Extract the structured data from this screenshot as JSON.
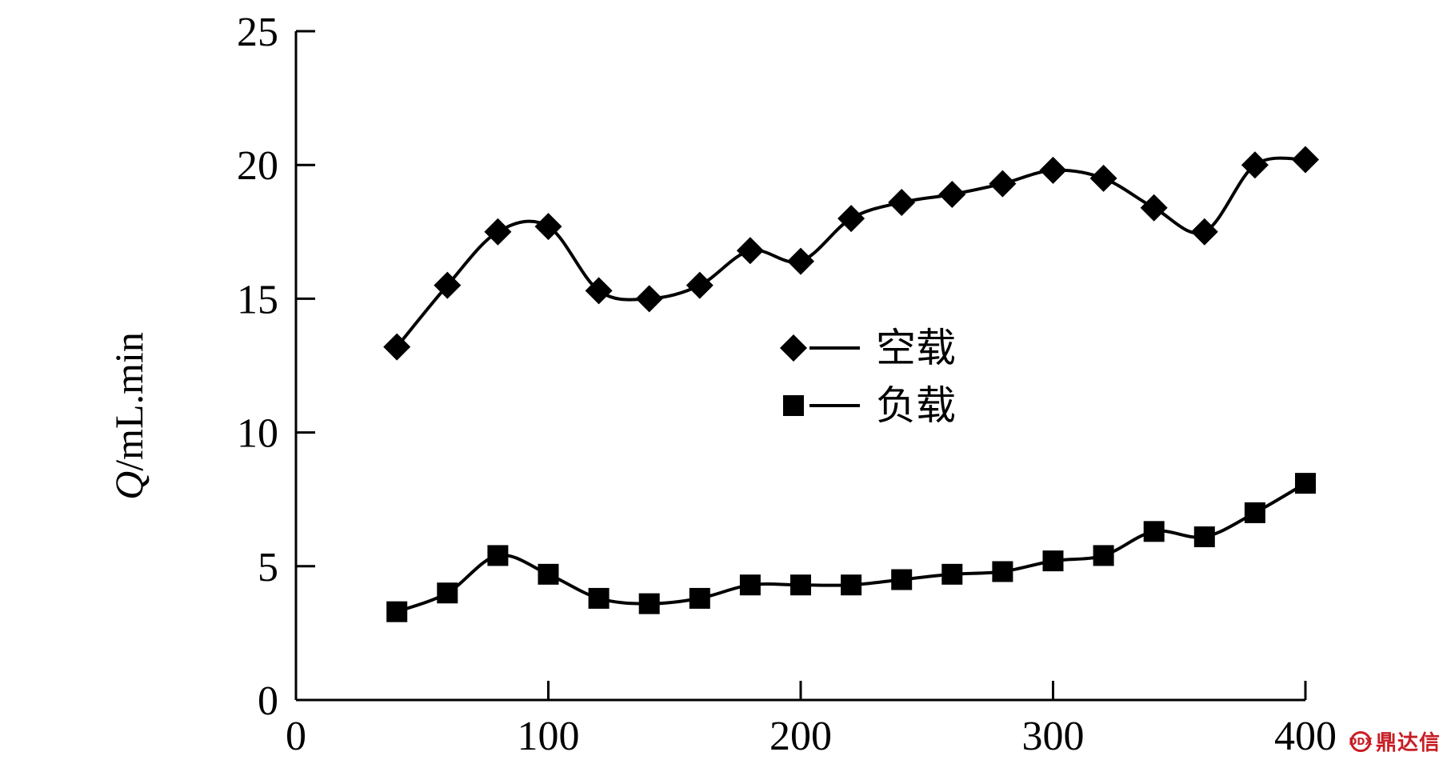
{
  "chart_data": {
    "type": "line",
    "title": "",
    "xlabel": "",
    "ylabel_italic": "Q",
    "ylabel_rest": "/mL.min",
    "xlim": [
      0,
      400
    ],
    "ylim": [
      0,
      25
    ],
    "x_ticks": [
      0,
      100,
      200,
      300,
      400
    ],
    "y_ticks": [
      0,
      5,
      10,
      15,
      20,
      25
    ],
    "grid": false,
    "legend_position": "center",
    "series": [
      {
        "name": "空载",
        "marker": "diamond",
        "color": "#000000",
        "x": [
          40,
          60,
          80,
          100,
          120,
          140,
          160,
          180,
          200,
          220,
          240,
          260,
          280,
          300,
          320,
          340,
          360,
          380,
          400
        ],
        "values": [
          13.2,
          15.5,
          17.5,
          17.7,
          15.3,
          15.0,
          15.5,
          16.8,
          16.4,
          18.0,
          18.6,
          18.9,
          19.3,
          19.8,
          19.5,
          18.4,
          17.5,
          20.0,
          20.2
        ]
      },
      {
        "name": "负载",
        "marker": "square",
        "color": "#000000",
        "x": [
          40,
          60,
          80,
          100,
          120,
          140,
          160,
          180,
          200,
          220,
          240,
          260,
          280,
          300,
          320,
          340,
          360,
          380,
          400
        ],
        "values": [
          3.3,
          4.0,
          5.4,
          4.7,
          3.8,
          3.6,
          3.8,
          4.3,
          4.3,
          4.3,
          4.5,
          4.7,
          4.8,
          5.2,
          5.4,
          6.3,
          6.1,
          7.0,
          8.1
        ]
      }
    ]
  },
  "watermark": {
    "badge_text": "DDX",
    "text": "鼎达信"
  }
}
